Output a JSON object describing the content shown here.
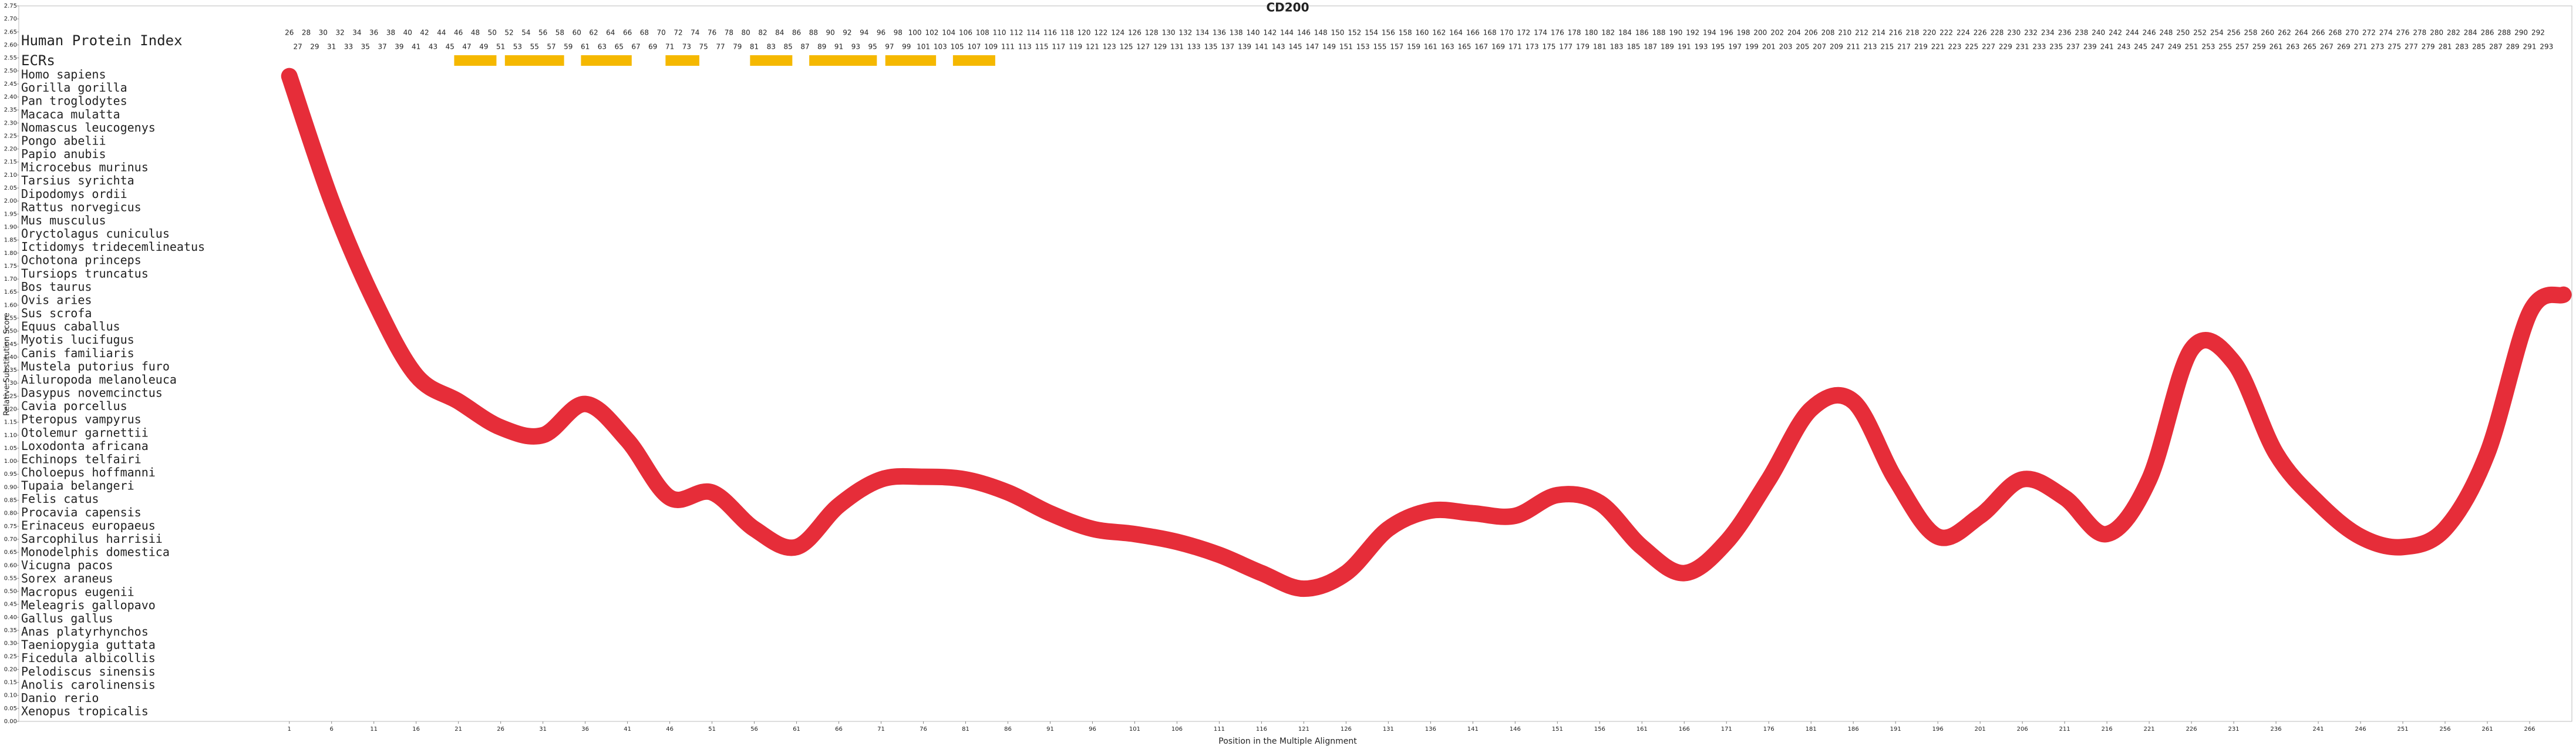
{
  "chart_data": {
    "type": "line",
    "title": "CD200",
    "x_label": "Position in the Multiple Alignment",
    "y_label": "Relative Substitution Score",
    "color": "#e3101e",
    "x": [
      1,
      6,
      11,
      16,
      21,
      26,
      31,
      36,
      41,
      46,
      51,
      56,
      61,
      66,
      71,
      76,
      81,
      86,
      91,
      96,
      101,
      106,
      111,
      116,
      121,
      126,
      131,
      136,
      141,
      146,
      151,
      156,
      161,
      166,
      171,
      176,
      181,
      186,
      191,
      196,
      201,
      206,
      211,
      216,
      221,
      226,
      231,
      236,
      241,
      246,
      251,
      256,
      261,
      266,
      270
    ],
    "values": [
      2.48,
      2.0,
      1.62,
      1.33,
      1.23,
      1.13,
      1.1,
      1.22,
      1.08,
      0.86,
      0.88,
      0.74,
      0.67,
      0.83,
      0.93,
      0.94,
      0.93,
      0.88,
      0.8,
      0.74,
      0.72,
      0.69,
      0.64,
      0.57,
      0.51,
      0.57,
      0.74,
      0.81,
      0.8,
      0.79,
      0.87,
      0.84,
      0.67,
      0.57,
      0.69,
      0.93,
      1.2,
      1.23,
      0.93,
      0.71,
      0.79,
      0.93,
      0.86,
      0.72,
      0.93,
      1.43,
      1.38,
      1.03,
      0.84,
      0.71,
      0.67,
      0.74,
      1.03,
      1.57,
      1.64
    ],
    "xlim": [
      -31,
      271
    ],
    "ylim": [
      0,
      2.75
    ],
    "xticks": [
      1,
      6,
      11,
      16,
      21,
      26,
      31,
      36,
      41,
      46,
      51,
      56,
      61,
      66,
      71,
      76,
      81,
      86,
      91,
      96,
      101,
      106,
      111,
      116,
      121,
      126,
      131,
      136,
      141,
      146,
      151,
      156,
      161,
      166,
      171,
      176,
      181,
      186,
      191,
      196,
      201,
      206,
      211,
      216,
      221,
      226,
      231,
      236,
      241,
      246,
      251,
      256,
      261,
      266
    ],
    "yticks": [
      {
        "value": 0,
        "label": "0.00"
      },
      0.05,
      {
        "value": 0.1,
        "label": "0.10"
      },
      0.15,
      {
        "value": 0.2,
        "label": "0.20"
      },
      0.25,
      {
        "value": 0.3,
        "label": "0.30"
      },
      0.35,
      {
        "value": 0.4,
        "label": "0.40"
      },
      0.45,
      {
        "value": 0.5,
        "label": "0.50"
      },
      0.55,
      {
        "value": 0.6,
        "label": "0.60"
      },
      0.65,
      {
        "value": 0.7,
        "label": "0.70"
      },
      0.75,
      {
        "value": 0.8,
        "label": "0.80"
      },
      0.85,
      {
        "value": 0.9,
        "label": "0.90"
      },
      0.95,
      {
        "value": 1,
        "label": "1.00"
      },
      1.05,
      {
        "value": 1.1,
        "label": "1.10"
      },
      1.15,
      {
        "value": 1.2,
        "label": "1.20"
      },
      1.25,
      {
        "value": 1.3,
        "label": "1.30"
      },
      1.35,
      {
        "value": 1.4,
        "label": "1.40"
      },
      1.45,
      {
        "value": 1.5,
        "label": "1.50"
      },
      1.55,
      {
        "value": 1.6,
        "label": "1.60"
      },
      1.65,
      {
        "value": 1.7,
        "label": "1.70"
      },
      1.75,
      {
        "value": 1.8,
        "label": "1.80"
      },
      1.85,
      {
        "value": 1.9,
        "label": "1.90"
      },
      1.95,
      {
        "value": 2,
        "label": "2.00"
      },
      2.05,
      {
        "value": 2.1,
        "label": "2.10"
      },
      2.15,
      {
        "value": 2.2,
        "label": "2.20"
      },
      2.25,
      {
        "value": 2.3,
        "label": "2.30"
      },
      2.35,
      {
        "value": 2.4,
        "label": "2.40"
      },
      2.45,
      {
        "value": 2.5,
        "label": "2.50"
      },
      2.55,
      {
        "value": 2.6,
        "label": "2.60"
      },
      2.65,
      {
        "value": 2.7,
        "label": "2.70"
      },
      2.75
    ]
  },
  "alignment": {
    "index_label": "Human Protein Index",
    "ecr_label": "ECRs",
    "ecr_color": "#f5b800",
    "ecrs": [
      [
        21,
        25
      ],
      [
        27,
        33
      ],
      [
        36,
        41
      ],
      [
        46,
        49
      ],
      [
        56,
        60
      ],
      [
        63,
        70
      ],
      [
        72,
        77
      ],
      [
        80,
        84
      ]
    ],
    "index_top": [
      26,
      28,
      30,
      32,
      34,
      36,
      38,
      40,
      42,
      44,
      46,
      48,
      50,
      52,
      54,
      56,
      58,
      60,
      62,
      64,
      66,
      68,
      70,
      72,
      74,
      76,
      78,
      80,
      82,
      84,
      86,
      88,
      90,
      92,
      94,
      96,
      98,
      100,
      102,
      104,
      106,
      108,
      110,
      112,
      114,
      116,
      118,
      120,
      122,
      124,
      126,
      128,
      130,
      132,
      134,
      136,
      138,
      140,
      142,
      144,
      146,
      148,
      150,
      152,
      154,
      156,
      158,
      160,
      162,
      164,
      166,
      168,
      170,
      172,
      174,
      176,
      178,
      180,
      182,
      184,
      186,
      188,
      190,
      192,
      194,
      196,
      198,
      200,
      202,
      204,
      206,
      208,
      210,
      212,
      214,
      216,
      218,
      220,
      222,
      224,
      226,
      228,
      230,
      232,
      234,
      236,
      238,
      240,
      242,
      244,
      246,
      248,
      250,
      252,
      254,
      256,
      258,
      260,
      262,
      264,
      266,
      268,
      270,
      272,
      274,
      276,
      278,
      280,
      282,
      284,
      286,
      288,
      290,
      292
    ],
    "index_bottom": [
      27,
      29,
      31,
      33,
      35,
      37,
      39,
      41,
      43,
      45,
      47,
      49,
      51,
      53,
      55,
      57,
      59,
      61,
      63,
      65,
      67,
      69,
      71,
      73,
      75,
      77,
      79,
      81,
      83,
      85,
      87,
      89,
      91,
      93,
      95,
      97,
      99,
      101,
      103,
      105,
      107,
      109,
      111,
      113,
      115,
      117,
      119,
      121,
      123,
      125,
      127,
      129,
      131,
      133,
      135,
      137,
      139,
      141,
      143,
      145,
      147,
      149,
      151,
      153,
      155,
      157,
      159,
      161,
      163,
      165,
      167,
      169,
      171,
      173,
      175,
      177,
      179,
      181,
      183,
      185,
      187,
      189,
      191,
      193,
      195,
      197,
      199,
      201,
      203,
      205,
      207,
      209,
      211,
      213,
      215,
      217,
      219,
      221,
      223,
      225,
      227,
      229,
      231,
      233,
      235,
      237,
      239,
      241,
      243,
      245,
      247,
      249,
      251,
      253,
      255,
      257,
      259,
      261,
      263,
      265,
      267,
      269,
      271,
      273,
      275,
      277,
      279,
      281,
      283,
      285,
      287,
      289,
      291,
      293
    ],
    "species": [
      "Homo sapiens",
      "Gorilla gorilla",
      "Pan troglodytes",
      "Macaca mulatta",
      "Nomascus leucogenys",
      "Pongo abelii",
      "Papio anubis",
      "Microcebus murinus",
      "Tarsius syrichta",
      "Dipodomys ordii",
      "Rattus norvegicus",
      "Mus musculus",
      "Oryctolagus cuniculus",
      "Ictidomys tridecemlineatus",
      "Ochotona princeps",
      "Tursiops truncatus",
      "Bos taurus",
      "Ovis aries",
      "Sus scrofa",
      "Equus caballus",
      "Myotis lucifugus",
      "Canis familiaris",
      "Mustela putorius furo",
      "Ailuropoda melanoleuca",
      "Dasypus novemcinctus",
      "Cavia porcellus",
      "Pteropus vampyrus",
      "Otolemur garnettii",
      "Loxodonta africana",
      "Echinops telfairi",
      "Choloepus hoffmanni",
      "Tupaia belangeri",
      "Felis catus",
      "Procavia capensis",
      "Erinaceus europaeus",
      "Sarcophilus harrisii",
      "Monodelphis domestica",
      "Vicugna pacos",
      "Sorex araneus",
      "Macropus eugenii",
      "Meleagris gallopavo",
      "Gallus gallus",
      "Anas platyrhynchos",
      "Taeniopygia guttata",
      "Ficedula albicollis",
      "Pelodiscus sinensis",
      "Anolis carolinensis",
      "Danio rerio",
      "Xenopus tropicalis"
    ]
  }
}
